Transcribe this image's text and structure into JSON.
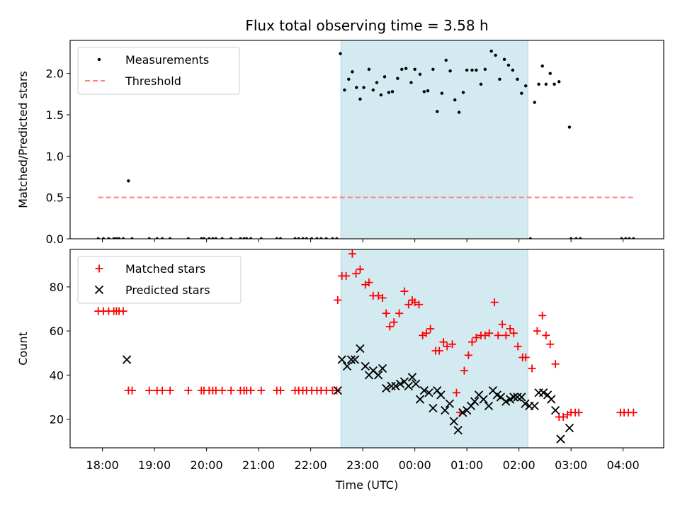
{
  "chart_data": [
    {
      "type": "scatter",
      "panel": "top",
      "title": "Flux total observing time = 3.58 h",
      "ylabel": "Matched/Predicted stars",
      "xlabel": "",
      "ylim": [
        0,
        2.4
      ],
      "yticks": [
        0,
        0.5,
        1.0,
        1.5,
        2.0
      ],
      "ytick_labels": [
        "0.0",
        "0.5",
        "1.0",
        "1.5",
        "2.0"
      ],
      "xlim": [
        17.38,
        4.78
      ],
      "shaded_interval": {
        "start": 22.58,
        "end": 2.17,
        "color": "#d3eaf0"
      },
      "legend": {
        "position": "upper-left",
        "entries": [
          "Measurements",
          "Threshold"
        ]
      },
      "series": [
        {
          "name": "Threshold",
          "style": "dashed-line",
          "color": "#ff7f7f",
          "x": [
            17.92,
            4.2
          ],
          "y": [
            0.5,
            0.5
          ]
        },
        {
          "name": "Measurements",
          "style": "dot",
          "color": "#000000",
          "points": [
            [
              17.92,
              0
            ],
            [
              18.02,
              0
            ],
            [
              18.12,
              0
            ],
            [
              18.22,
              0
            ],
            [
              18.27,
              0
            ],
            [
              18.32,
              0
            ],
            [
              18.4,
              0
            ],
            [
              18.5,
              0.7
            ],
            [
              18.57,
              0
            ],
            [
              18.9,
              0
            ],
            [
              19.05,
              0
            ],
            [
              19.15,
              0
            ],
            [
              19.3,
              0
            ],
            [
              19.65,
              0
            ],
            [
              19.9,
              0
            ],
            [
              19.95,
              0
            ],
            [
              20.05,
              0
            ],
            [
              20.12,
              0
            ],
            [
              20.18,
              0
            ],
            [
              20.3,
              0
            ],
            [
              20.47,
              0
            ],
            [
              20.65,
              0
            ],
            [
              20.72,
              0
            ],
            [
              20.77,
              0
            ],
            [
              20.85,
              0
            ],
            [
              21.05,
              0
            ],
            [
              21.35,
              0
            ],
            [
              21.42,
              0
            ],
            [
              21.7,
              0
            ],
            [
              21.77,
              0
            ],
            [
              21.85,
              0
            ],
            [
              21.92,
              0
            ],
            [
              22.02,
              0
            ],
            [
              22.12,
              0
            ],
            [
              22.2,
              0
            ],
            [
              22.3,
              0
            ],
            [
              22.42,
              0
            ],
            [
              22.5,
              0
            ],
            [
              22.57,
              2.24
            ],
            [
              22.65,
              1.8
            ],
            [
              22.73,
              1.93
            ],
            [
              22.8,
              2.02
            ],
            [
              22.88,
              1.83
            ],
            [
              22.95,
              1.69
            ],
            [
              23.02,
              1.83
            ],
            [
              23.12,
              2.05
            ],
            [
              23.2,
              1.8
            ],
            [
              23.27,
              1.89
            ],
            [
              23.35,
              1.74
            ],
            [
              23.42,
              1.96
            ],
            [
              23.5,
              1.77
            ],
            [
              23.57,
              1.78
            ],
            [
              23.67,
              1.94
            ],
            [
              23.75,
              2.05
            ],
            [
              23.83,
              2.06
            ],
            [
              23.93,
              1.89
            ],
            [
              24.0,
              2.05
            ],
            [
              24.1,
              1.99
            ],
            [
              24.18,
              1.78
            ],
            [
              24.25,
              1.79
            ],
            [
              24.35,
              2.05
            ],
            [
              24.43,
              1.54
            ],
            [
              24.52,
              1.76
            ],
            [
              24.6,
              2.16
            ],
            [
              24.68,
              2.03
            ],
            [
              24.77,
              1.68
            ],
            [
              24.85,
              1.53
            ],
            [
              24.93,
              1.77
            ],
            [
              25.0,
              2.04
            ],
            [
              25.1,
              2.04
            ],
            [
              25.18,
              2.04
            ],
            [
              25.27,
              1.87
            ],
            [
              25.35,
              2.05
            ],
            [
              25.47,
              2.27
            ],
            [
              25.55,
              2.22
            ],
            [
              25.63,
              1.93
            ],
            [
              25.72,
              2.17
            ],
            [
              25.8,
              2.1
            ],
            [
              25.88,
              2.04
            ],
            [
              25.97,
              1.93
            ],
            [
              26.05,
              1.76
            ],
            [
              26.13,
              1.85
            ],
            [
              26.22,
              0
            ],
            [
              26.3,
              1.65
            ],
            [
              26.38,
              1.87
            ],
            [
              26.45,
              2.09
            ],
            [
              26.52,
              1.87
            ],
            [
              26.6,
              2.0
            ],
            [
              26.68,
              1.87
            ],
            [
              26.77,
              1.9
            ],
            [
              26.97,
              1.35
            ],
            [
              27.0,
              0
            ],
            [
              27.1,
              0
            ],
            [
              27.18,
              0
            ],
            [
              27.97,
              0
            ],
            [
              28.05,
              0
            ],
            [
              28.12,
              0
            ],
            [
              28.2,
              0
            ]
          ]
        }
      ]
    },
    {
      "type": "scatter",
      "panel": "bottom",
      "title": "",
      "ylabel": "Count",
      "xlabel": "Time (UTC)",
      "ylim": [
        7,
        97
      ],
      "yticks": [
        20,
        40,
        60,
        80
      ],
      "ytick_labels": [
        "20",
        "40",
        "60",
        "80"
      ],
      "xlim": [
        17.38,
        4.78
      ],
      "xticks": [
        18,
        19,
        20,
        21,
        22,
        23,
        0,
        1,
        2,
        3,
        4
      ],
      "xtick_labels": [
        "18:00",
        "19:00",
        "20:00",
        "21:00",
        "22:00",
        "23:00",
        "00:00",
        "01:00",
        "02:00",
        "03:00",
        "04:00"
      ],
      "shaded_interval": {
        "start": 22.58,
        "end": 2.17,
        "color": "#d3eaf0"
      },
      "legend": {
        "position": "upper-left",
        "entries": [
          "Matched stars",
          "Predicted stars"
        ]
      },
      "series": [
        {
          "name": "Matched stars",
          "marker": "+",
          "color": "#ff0000",
          "points": [
            [
              17.92,
              69
            ],
            [
              18.02,
              69
            ],
            [
              18.12,
              69
            ],
            [
              18.22,
              69
            ],
            [
              18.27,
              69
            ],
            [
              18.32,
              69
            ],
            [
              18.4,
              69
            ],
            [
              18.5,
              33
            ],
            [
              18.57,
              33
            ],
            [
              18.9,
              33
            ],
            [
              19.05,
              33
            ],
            [
              19.15,
              33
            ],
            [
              19.3,
              33
            ],
            [
              19.65,
              33
            ],
            [
              19.9,
              33
            ],
            [
              19.95,
              33
            ],
            [
              20.05,
              33
            ],
            [
              20.12,
              33
            ],
            [
              20.18,
              33
            ],
            [
              20.3,
              33
            ],
            [
              20.47,
              33
            ],
            [
              20.65,
              33
            ],
            [
              20.72,
              33
            ],
            [
              20.77,
              33
            ],
            [
              20.85,
              33
            ],
            [
              21.05,
              33
            ],
            [
              21.35,
              33
            ],
            [
              21.42,
              33
            ],
            [
              21.7,
              33
            ],
            [
              21.77,
              33
            ],
            [
              21.85,
              33
            ],
            [
              21.92,
              33
            ],
            [
              22.02,
              33
            ],
            [
              22.12,
              33
            ],
            [
              22.2,
              33
            ],
            [
              22.3,
              33
            ],
            [
              22.42,
              33
            ],
            [
              22.5,
              33
            ],
            [
              22.52,
              74
            ],
            [
              22.6,
              85
            ],
            [
              22.68,
              85
            ],
            [
              22.8,
              95
            ],
            [
              22.87,
              86
            ],
            [
              22.95,
              88
            ],
            [
              23.05,
              81
            ],
            [
              23.12,
              82
            ],
            [
              23.2,
              76
            ],
            [
              23.3,
              76
            ],
            [
              23.38,
              75
            ],
            [
              23.45,
              68
            ],
            [
              23.52,
              62
            ],
            [
              23.6,
              64
            ],
            [
              23.7,
              68
            ],
            [
              23.8,
              78
            ],
            [
              23.88,
              72
            ],
            [
              23.95,
              74
            ],
            [
              24.0,
              73
            ],
            [
              24.08,
              72
            ],
            [
              24.15,
              58
            ],
            [
              24.22,
              59
            ],
            [
              24.3,
              61
            ],
            [
              24.4,
              51
            ],
            [
              24.47,
              51
            ],
            [
              24.55,
              55
            ],
            [
              24.62,
              53
            ],
            [
              24.72,
              54
            ],
            [
              24.8,
              32
            ],
            [
              24.87,
              23
            ],
            [
              24.95,
              42
            ],
            [
              25.03,
              49
            ],
            [
              25.1,
              55
            ],
            [
              25.18,
              57
            ],
            [
              25.27,
              58
            ],
            [
              25.35,
              58
            ],
            [
              25.43,
              59
            ],
            [
              25.53,
              73
            ],
            [
              25.6,
              58
            ],
            [
              25.68,
              63
            ],
            [
              25.75,
              58
            ],
            [
              25.83,
              61
            ],
            [
              25.9,
              59
            ],
            [
              25.98,
              53
            ],
            [
              26.07,
              48
            ],
            [
              26.13,
              48
            ],
            [
              26.25,
              43
            ],
            [
              26.35,
              60
            ],
            [
              26.45,
              67
            ],
            [
              26.52,
              58
            ],
            [
              26.6,
              54
            ],
            [
              26.7,
              45
            ],
            [
              26.77,
              21
            ],
            [
              26.85,
              21
            ],
            [
              26.93,
              22
            ],
            [
              27.0,
              23
            ],
            [
              27.08,
              23
            ],
            [
              27.15,
              23
            ],
            [
              27.95,
              23
            ],
            [
              28.02,
              23
            ],
            [
              28.1,
              23
            ],
            [
              28.2,
              23
            ]
          ]
        },
        {
          "name": "Predicted stars",
          "marker": "x",
          "color": "#000000",
          "points": [
            [
              18.47,
              47
            ],
            [
              22.52,
              33
            ],
            [
              22.6,
              47
            ],
            [
              22.7,
              44
            ],
            [
              22.78,
              47
            ],
            [
              22.85,
              47
            ],
            [
              22.95,
              52
            ],
            [
              23.05,
              44
            ],
            [
              23.12,
              40
            ],
            [
              23.2,
              42
            ],
            [
              23.3,
              40
            ],
            [
              23.38,
              43
            ],
            [
              23.45,
              34
            ],
            [
              23.55,
              35
            ],
            [
              23.63,
              35
            ],
            [
              23.72,
              36
            ],
            [
              23.8,
              37
            ],
            [
              23.88,
              35
            ],
            [
              23.95,
              39
            ],
            [
              24.02,
              36
            ],
            [
              24.1,
              29
            ],
            [
              24.18,
              33
            ],
            [
              24.27,
              32
            ],
            [
              24.35,
              25
            ],
            [
              24.43,
              33
            ],
            [
              24.5,
              31
            ],
            [
              24.58,
              24
            ],
            [
              24.67,
              27
            ],
            [
              24.75,
              19
            ],
            [
              24.83,
              15
            ],
            [
              24.92,
              23
            ],
            [
              25.0,
              24
            ],
            [
              25.08,
              26
            ],
            [
              25.15,
              28
            ],
            [
              25.23,
              31
            ],
            [
              25.32,
              29
            ],
            [
              25.42,
              26
            ],
            [
              25.5,
              33
            ],
            [
              25.58,
              31
            ],
            [
              25.65,
              30
            ],
            [
              25.75,
              28
            ],
            [
              25.83,
              29
            ],
            [
              25.9,
              30
            ],
            [
              25.97,
              30
            ],
            [
              26.05,
              30
            ],
            [
              26.12,
              27
            ],
            [
              26.2,
              26
            ],
            [
              26.3,
              26
            ],
            [
              26.38,
              32
            ],
            [
              26.47,
              32
            ],
            [
              26.55,
              31
            ],
            [
              26.62,
              29
            ],
            [
              26.7,
              24
            ],
            [
              26.8,
              11
            ],
            [
              26.97,
              16
            ]
          ]
        }
      ]
    }
  ]
}
